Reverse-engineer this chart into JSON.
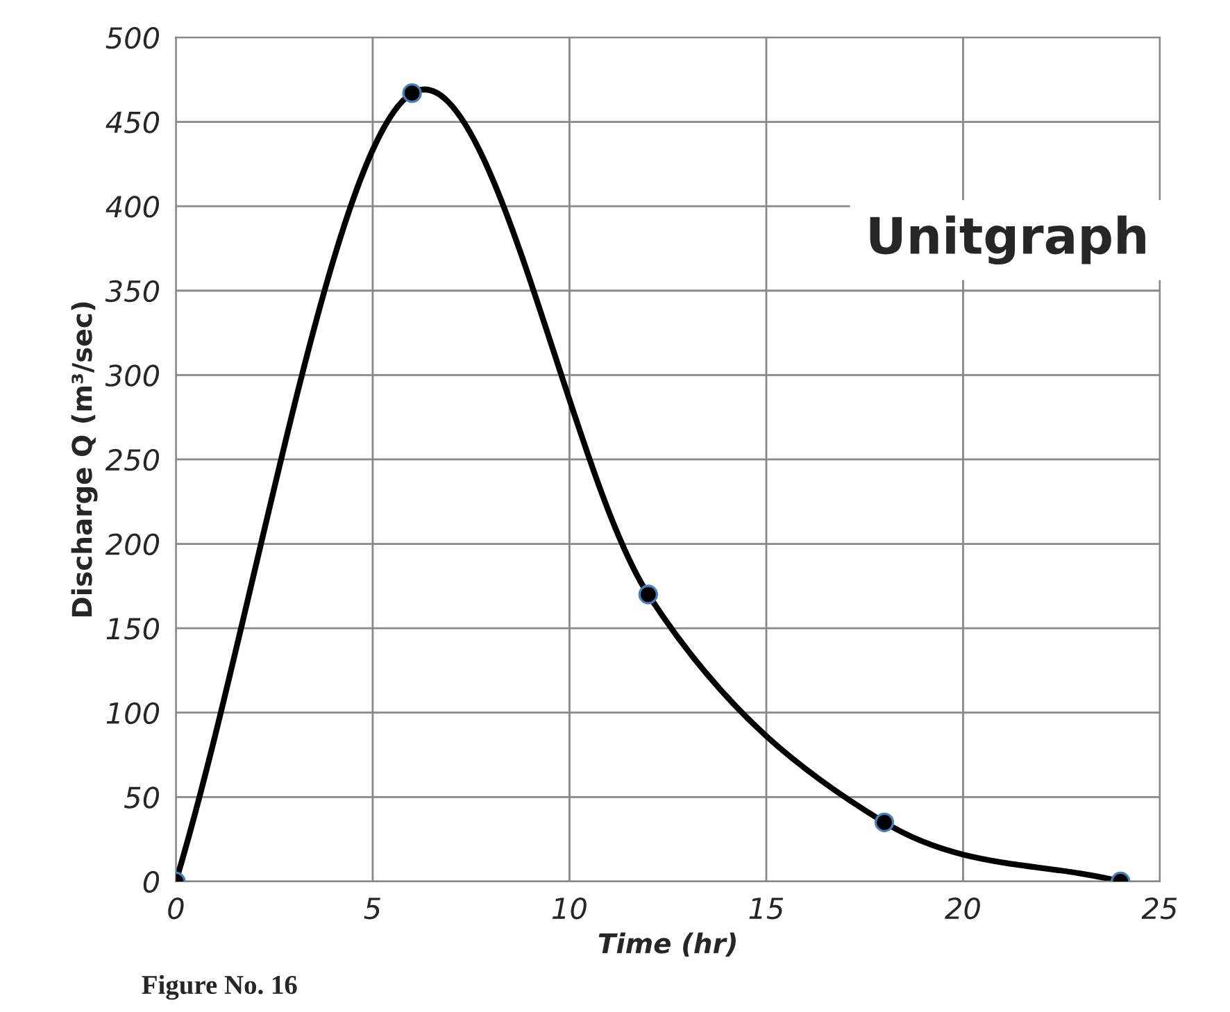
{
  "chart_data": {
    "type": "line",
    "title": "Unitgraph",
    "xlabel": "Time (hr)",
    "ylabel": "Discharge Q (m³/sec)",
    "annotations": [
      "Figure No. 16"
    ],
    "x": [
      0,
      6,
      12,
      18,
      24
    ],
    "series": [
      {
        "color": "#000000",
        "values": [
          0,
          467,
          170,
          35,
          0
        ]
      }
    ],
    "xlim": [
      0,
      25
    ],
    "xticks": [
      0,
      5,
      10,
      15,
      20,
      25
    ],
    "ylim": [
      0,
      500
    ],
    "yticks": [
      0,
      50,
      100,
      150,
      200,
      250,
      300,
      350,
      400,
      450,
      500
    ],
    "grid": true,
    "marker": "circle",
    "line_style": "solid"
  }
}
